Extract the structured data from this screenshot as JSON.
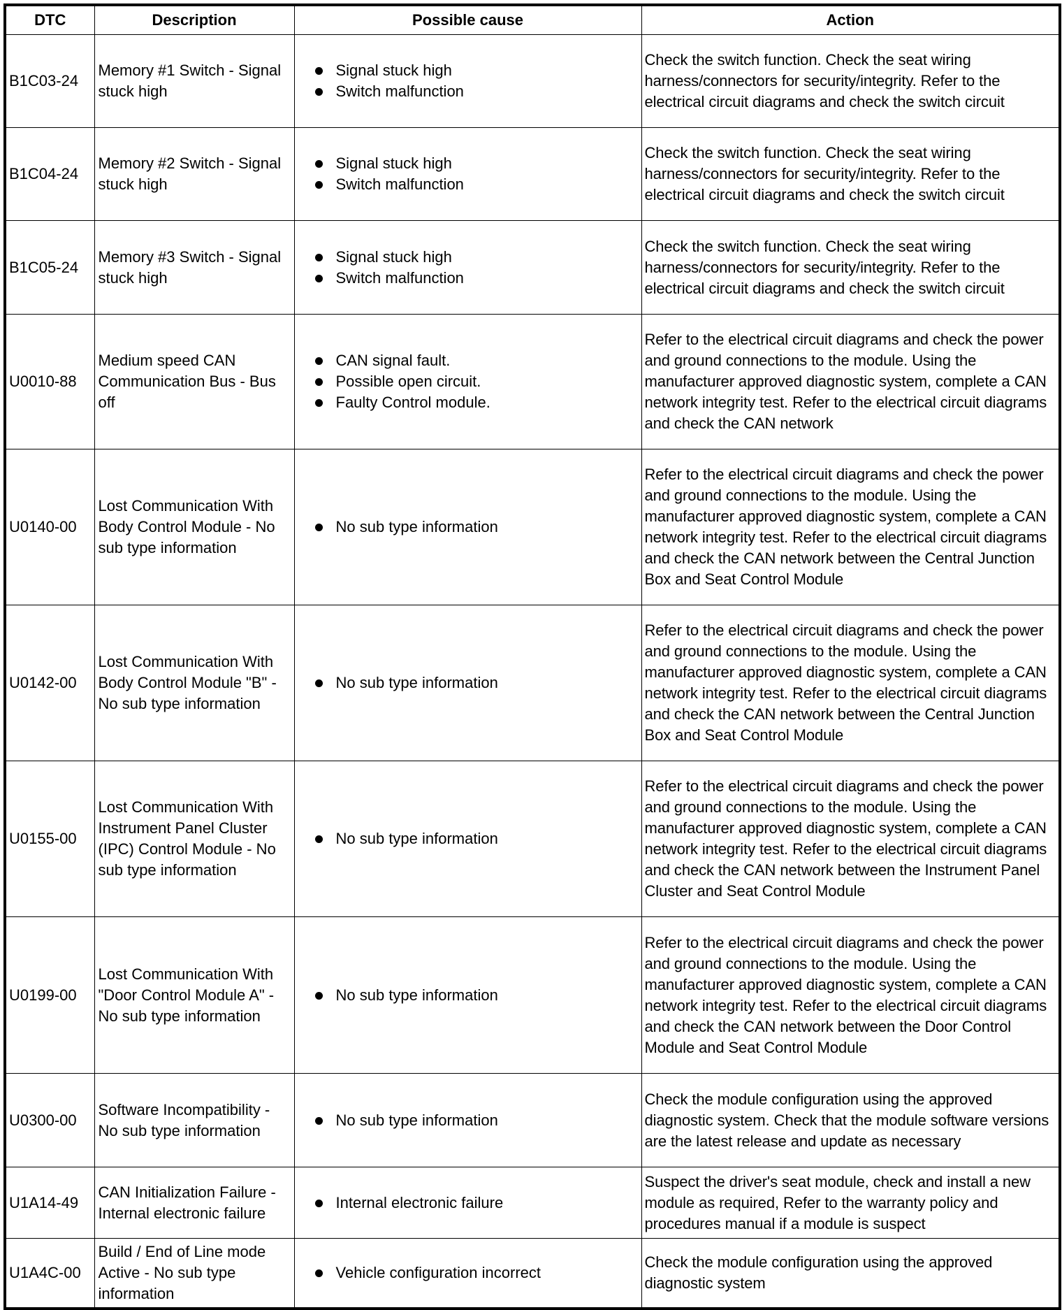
{
  "headers": [
    "DTC",
    "Description",
    "Possible cause",
    "Action"
  ],
  "rows": [
    {
      "dtc": "B1C03-24",
      "description": "Memory #1 Switch - Signal stuck high",
      "causes": [
        "Signal stuck high",
        "Switch malfunction"
      ],
      "action": "Check the switch function. Check the seat wiring harness/connectors for security/integrity. Refer to the electrical circuit diagrams and check the switch circuit"
    },
    {
      "dtc": "B1C04-24",
      "description": "Memory #2 Switch - Signal stuck high",
      "causes": [
        "Signal stuck high",
        "Switch malfunction"
      ],
      "action": "Check the switch function. Check the seat wiring harness/connectors for security/integrity. Refer to the electrical circuit diagrams and check the switch circuit"
    },
    {
      "dtc": "B1C05-24",
      "description": "Memory #3 Switch - Signal stuck high",
      "causes": [
        "Signal stuck high",
        "Switch malfunction"
      ],
      "action": "Check the switch function. Check the seat wiring harness/connectors for security/integrity. Refer to the electrical circuit diagrams and check the switch circuit"
    },
    {
      "dtc": "U0010-88",
      "description": "Medium speed CAN Communication Bus - Bus off",
      "causes": [
        "CAN signal fault.",
        "Possible open circuit.",
        "Faulty Control module."
      ],
      "action": "Refer to the electrical circuit diagrams and check the power and ground connections to the module. Using the manufacturer approved diagnostic system, complete a CAN network integrity test. Refer to the electrical circuit diagrams and check the CAN network"
    },
    {
      "dtc": "U0140-00",
      "description": "Lost Communication With Body Control Module - No sub type information",
      "causes": [
        "No sub type information"
      ],
      "action": "Refer to the electrical circuit diagrams and check the power and ground connections to the module. Using the manufacturer approved diagnostic system, complete a CAN network integrity test. Refer to the electrical circuit diagrams and check the CAN network between the Central Junction Box and Seat Control Module"
    },
    {
      "dtc": "U0142-00",
      "description": "Lost Communication With Body Control Module \"B\" - No sub type information",
      "causes": [
        "No sub type information"
      ],
      "action": "Refer to the electrical circuit diagrams and check the power and ground connections to the module. Using the manufacturer approved diagnostic system, complete a CAN network integrity test. Refer to the electrical circuit diagrams and check the CAN network between the Central Junction Box and Seat Control Module"
    },
    {
      "dtc": "U0155-00",
      "description": "Lost Communication With Instrument Panel Cluster (IPC) Control Module - No sub type information",
      "causes": [
        "No sub type information"
      ],
      "action": "Refer to the electrical circuit diagrams and check the power and ground connections to the module. Using the manufacturer approved diagnostic system, complete a CAN network integrity test. Refer to the electrical circuit diagrams and check the CAN network between the Instrument Panel Cluster and Seat Control Module"
    },
    {
      "dtc": "U0199-00",
      "description": "Lost Communication With \"Door Control Module A\" - No sub type information",
      "causes": [
        "No sub type information"
      ],
      "action": "Refer to the electrical circuit diagrams and check the power and ground connections to the module. Using the manufacturer approved diagnostic system, complete a CAN network integrity test. Refer to the electrical circuit diagrams and check the CAN network between the Door Control Module and Seat Control Module"
    },
    {
      "dtc": "U0300-00",
      "description": "Software Incompatibility - No sub type information",
      "causes": [
        "No sub type information"
      ],
      "action": "Check the module configuration using the approved diagnostic system. Check that the module software versions are the latest release and update as necessary"
    },
    {
      "dtc": "U1A14-49",
      "description": "CAN Initialization Failure - Internal electronic failure",
      "causes": [
        "Internal electronic failure"
      ],
      "action": "Suspect the driver's seat module, check and install a new module as required, Refer to the warranty policy and procedures manual if a module is suspect"
    },
    {
      "dtc": "U1A4C-00",
      "description": "Build / End of Line mode Active - No sub type information",
      "causes": [
        "Vehicle configuration incorrect"
      ],
      "action": "Check the module configuration using the approved diagnostic system"
    }
  ]
}
